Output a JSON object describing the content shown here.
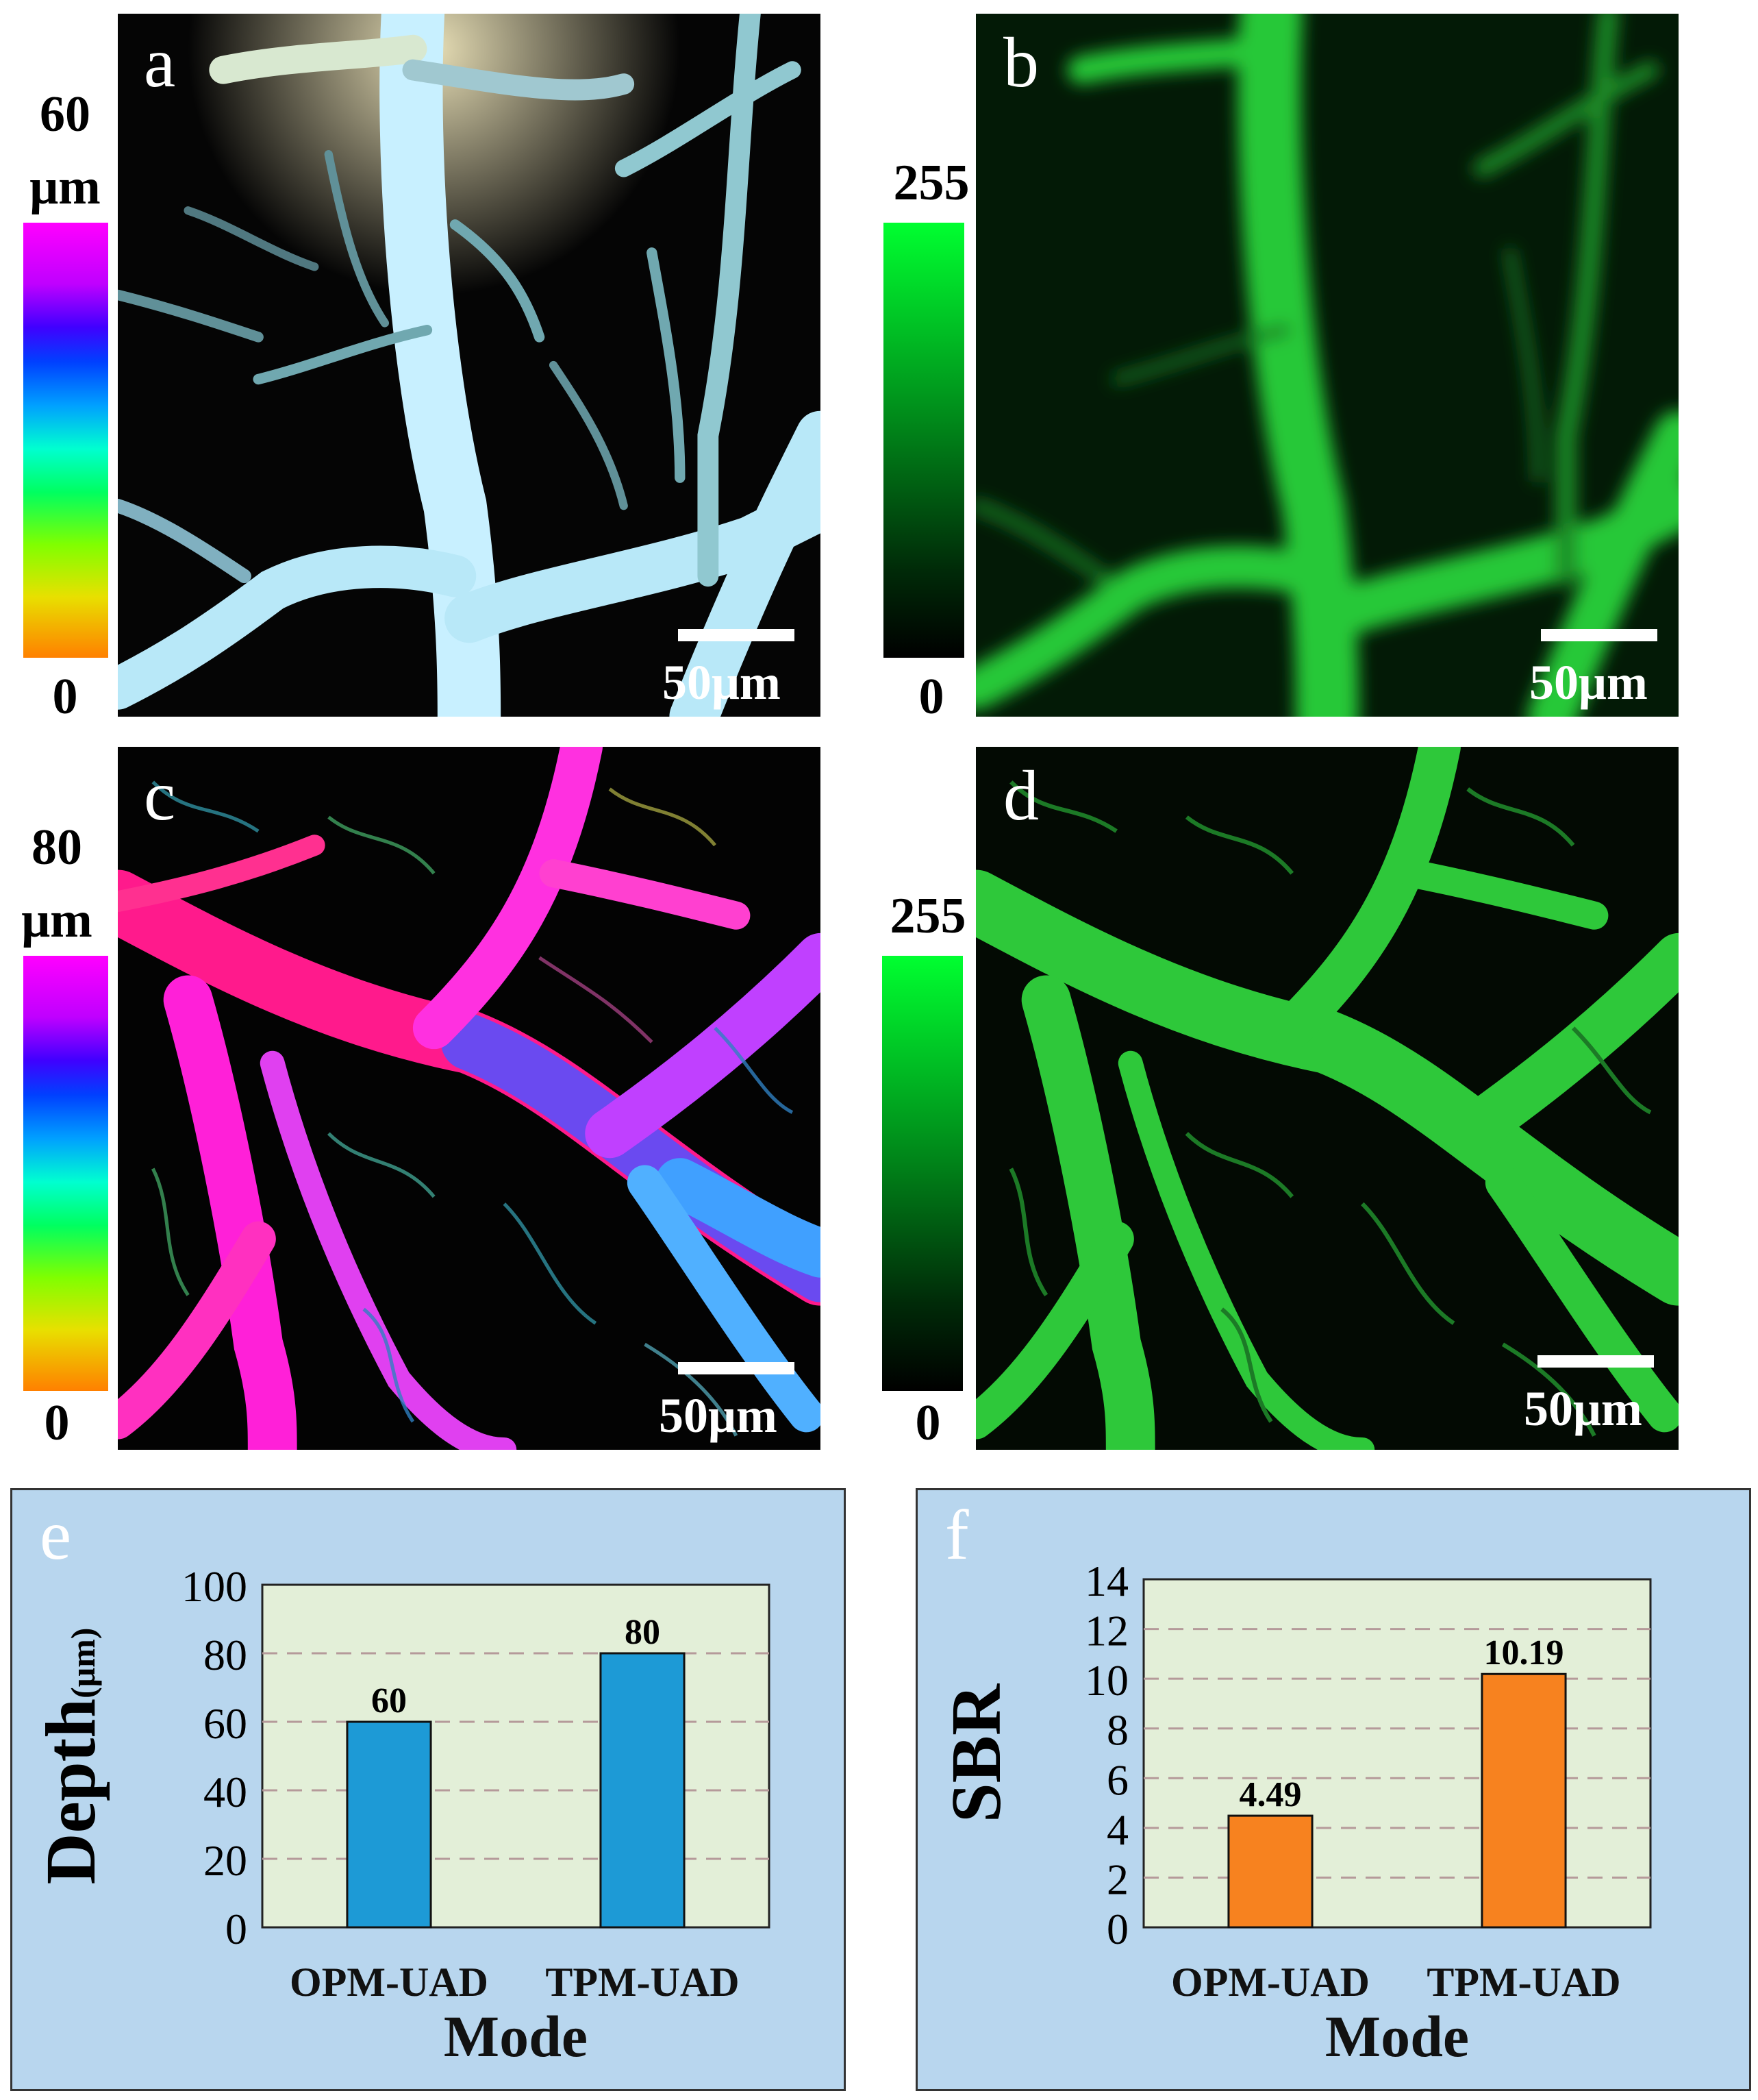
{
  "panels": [
    {
      "letter": "a",
      "colorbar": {
        "top": "60",
        "unit": "μm",
        "bottom": "0",
        "scheme": "depth-rainbow"
      },
      "scalebar": "50μm",
      "tint": "#c8f0ff"
    },
    {
      "letter": "b",
      "colorbar": {
        "top": "255",
        "bottom": "0",
        "scheme": "green"
      },
      "scalebar": "50μm",
      "tint": "#22dd33"
    },
    {
      "letter": "c",
      "colorbar": {
        "top": "80",
        "unit": "μm",
        "bottom": "0",
        "scheme": "depth-rainbow"
      },
      "scalebar": "50μm",
      "tint": "#ff22cc"
    },
    {
      "letter": "d",
      "colorbar": {
        "top": "255",
        "bottom": "0",
        "scheme": "green"
      },
      "scalebar": "50μm",
      "tint": "#33dd33"
    }
  ],
  "chart_data": [
    {
      "panel": "e",
      "type": "bar",
      "categories": [
        "OPM-UAD",
        "TPM-UAD"
      ],
      "values": [
        60,
        80
      ],
      "data_labels": [
        "60",
        "80"
      ],
      "xlabel": "Mode",
      "ylabel": "Depth",
      "ylabel_unit": "(μm)",
      "ylim": [
        0,
        100
      ],
      "yticks": [
        "0",
        "20",
        "40",
        "60",
        "80",
        "100"
      ],
      "grid": true,
      "bar_color": "#1d9ad6"
    },
    {
      "panel": "f",
      "type": "bar",
      "categories": [
        "OPM-UAD",
        "TPM-UAD"
      ],
      "values": [
        4.49,
        10.19
      ],
      "data_labels": [
        "4.49",
        "10.19"
      ],
      "xlabel": "Mode",
      "ylabel": "SBR",
      "ylim": [
        0,
        14
      ],
      "yticks": [
        "0",
        "2",
        "4",
        "6",
        "8",
        "10",
        "12",
        "14"
      ],
      "grid": true,
      "bar_color": "#f7821f"
    }
  ]
}
